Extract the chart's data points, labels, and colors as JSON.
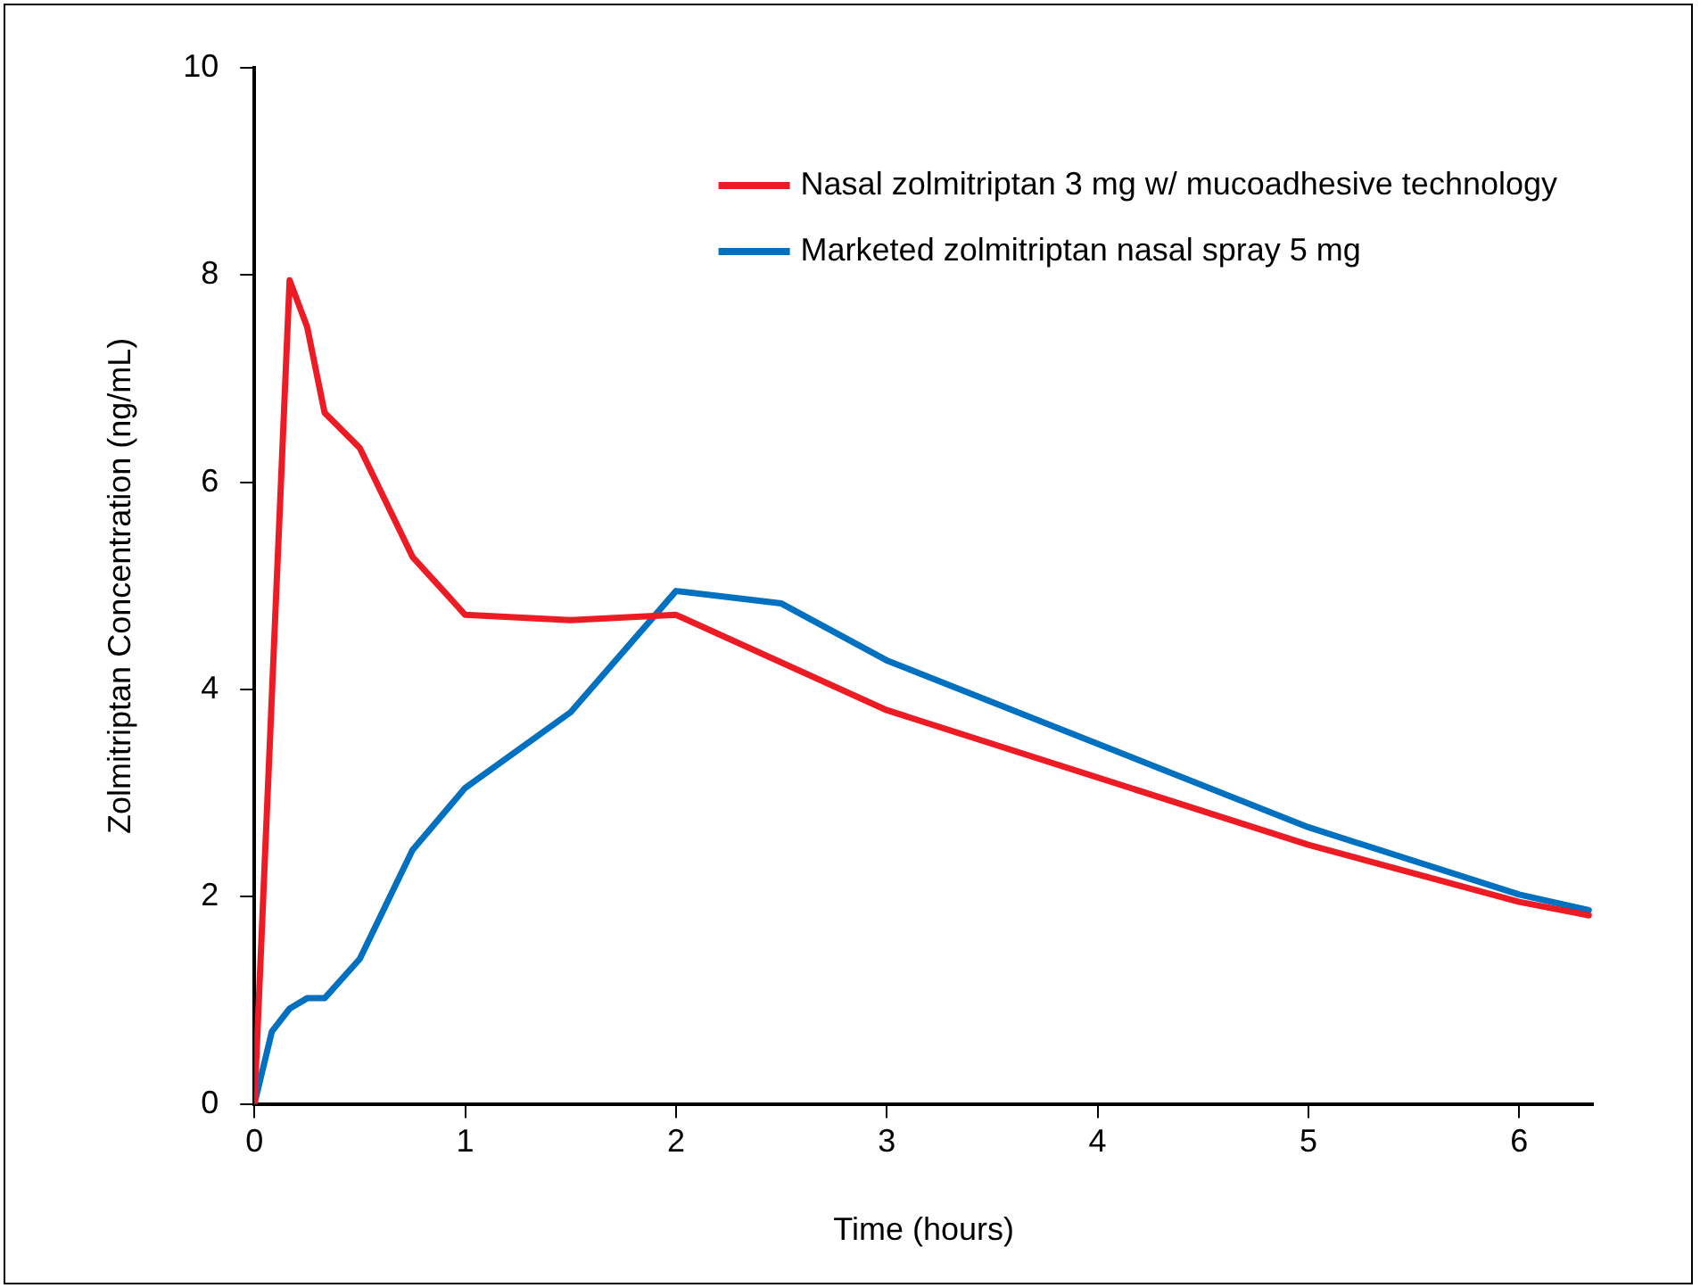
{
  "chart_data": {
    "type": "line",
    "xlabel": "Time (hours)",
    "ylabel": "Zolmitriptan Concentration (ng/mL)",
    "xlim": [
      0,
      6.35
    ],
    "xticks": [
      0,
      1,
      2,
      3,
      4,
      5,
      6
    ],
    "ylim": [
      0,
      10
    ],
    "yticks": [
      0,
      2,
      4,
      6,
      8,
      10
    ],
    "grid": false,
    "legend": "top right",
    "marker": "none",
    "line_style": "solid",
    "series": [
      {
        "name": "Nasal zolmitriptan 3 mg w/ mucoadhesive technology",
        "color": "#ed1c24",
        "x": [
          0,
          0.167,
          0.25,
          0.333,
          0.5,
          0.75,
          1,
          1.5,
          2,
          3,
          5,
          6,
          6.33
        ],
        "values": [
          0,
          7.95,
          7.5,
          6.67,
          6.33,
          5.28,
          4.72,
          4.67,
          4.72,
          3.8,
          2.5,
          1.95,
          1.82
        ]
      },
      {
        "name": "Marketed zolmitriptan nasal spray 5 mg",
        "color": "#0070c0",
        "x": [
          0,
          0.083,
          0.167,
          0.25,
          0.333,
          0.5,
          0.75,
          1,
          1.5,
          2,
          2.5,
          3,
          5,
          6,
          6.33
        ],
        "values": [
          0,
          0.7,
          0.92,
          1.02,
          1.02,
          1.4,
          2.45,
          3.05,
          3.78,
          4.95,
          4.83,
          4.28,
          2.67,
          2.02,
          1.87
        ]
      }
    ]
  }
}
